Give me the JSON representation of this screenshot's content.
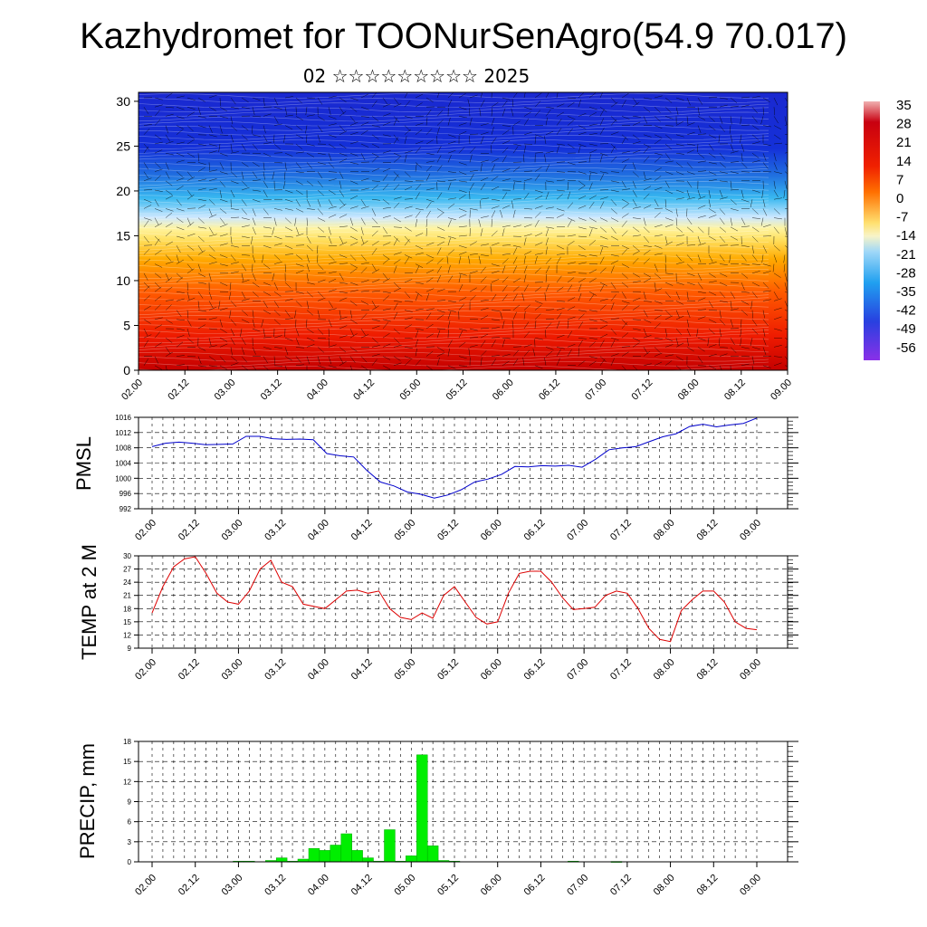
{
  "title": "Kazhydromet for TOONurSenAgro(54.9 70.017)",
  "subtitle": "02 ☆☆☆☆☆☆☆☆☆ 2025",
  "colors": {
    "pmsl_line": "#0000cc",
    "temp_line": "#dd0000",
    "precip_bar": "#00ee00",
    "precip_bar_edge": "#00aa00"
  },
  "chart_data": [
    {
      "type": "heatmap",
      "name": "cross-section",
      "x_ticks": [
        "02.00",
        "02.12",
        "03.00",
        "03.12",
        "04.00",
        "04.12",
        "05.00",
        "05.12",
        "06.00",
        "06.12",
        "07.00",
        "07.12",
        "08.00",
        "08.12",
        "09.00"
      ],
      "y_ticks": [
        "0",
        "5",
        "10",
        "15",
        "20",
        "25",
        "30"
      ],
      "ylim": [
        0,
        31
      ],
      "colorbar_labels": [
        "35",
        "28",
        "21",
        "14",
        "7",
        "0",
        "-7",
        "-14",
        "-21",
        "-28",
        "-35",
        "-42",
        "-49",
        "-56"
      ],
      "overlay": "wind barbs"
    },
    {
      "type": "line",
      "name": "pmsl",
      "ylabel": "PMSL",
      "ylim": [
        992,
        1016
      ],
      "y_ticks": [
        "1016",
        "1012",
        "1008",
        "1004",
        "1000",
        "996",
        "992"
      ],
      "x_ticks": [
        "02.00",
        "02.12",
        "03.00",
        "03.12",
        "04.00",
        "04.12",
        "05.00",
        "05.12",
        "06.00",
        "06.12",
        "07.00",
        "07.12",
        "08.00",
        "08.12",
        "09.00"
      ],
      "values": [
        1008.3,
        1009.2,
        1009.5,
        1009.2,
        1008.8,
        1008.9,
        1009.0,
        1011.0,
        1011.0,
        1010.4,
        1010.2,
        1010.3,
        1010.1,
        1006.5,
        1005.9,
        1005.6,
        1002.0,
        999.0,
        998.0,
        996.4,
        995.8,
        994.8,
        995.6,
        997.0,
        999.0,
        999.8,
        1001.0,
        1003.1,
        1003.0,
        1003.3,
        1003.2,
        1003.4,
        1002.9,
        1005.0,
        1007.5,
        1008.0,
        1008.3,
        1009.6,
        1010.9,
        1011.7,
        1013.6,
        1014.2,
        1013.5,
        1014.0,
        1014.4,
        1015.8
      ]
    },
    {
      "type": "line",
      "name": "temp",
      "ylabel": "TEMP at 2 M",
      "ylim": [
        9,
        30
      ],
      "y_ticks": [
        "30",
        "27",
        "24",
        "21",
        "18",
        "15",
        "12",
        "9"
      ],
      "x_ticks": [
        "02.00",
        "02.12",
        "03.00",
        "03.12",
        "04.00",
        "04.12",
        "05.00",
        "05.12",
        "06.00",
        "06.12",
        "07.00",
        "07.12",
        "08.00",
        "08.12",
        "09.00"
      ],
      "values": [
        17.0,
        23.0,
        27.5,
        29.3,
        29.8,
        26.0,
        21.5,
        19.5,
        19.0,
        22.0,
        27.0,
        29.0,
        24.0,
        23.0,
        19.0,
        18.5,
        18.0,
        20.0,
        22.0,
        22.2,
        21.5,
        22.0,
        18.0,
        16.0,
        15.5,
        17.0,
        15.8,
        21.0,
        23.0,
        19.5,
        16.0,
        14.5,
        15.0,
        21.5,
        26.0,
        26.5,
        26.5,
        24.0,
        20.5,
        17.8,
        18.0,
        18.3,
        21.0,
        22.0,
        21.5,
        18.0,
        13.5,
        11.0,
        10.5,
        17.5,
        20.0,
        22.0,
        22.0,
        19.5,
        15.0,
        13.5,
        13.2
      ]
    },
    {
      "type": "bar",
      "name": "precip",
      "ylabel": "PRECIP, mm",
      "ylim": [
        0,
        18
      ],
      "y_ticks": [
        "18",
        "15",
        "12",
        "9",
        "6",
        "3",
        "0"
      ],
      "x_ticks": [
        "02.00",
        "02.12",
        "03.00",
        "03.12",
        "04.00",
        "04.12",
        "05.00",
        "05.12",
        "06.00",
        "06.12",
        "07.00",
        "07.12",
        "08.00",
        "08.12",
        "09.00"
      ],
      "values": [
        0,
        0,
        0,
        0,
        0,
        0,
        0,
        0,
        0.1,
        0.1,
        0,
        0.2,
        0.6,
        0.1,
        0.4,
        2.0,
        1.7,
        2.5,
        4.2,
        1.7,
        0.6,
        0.1,
        4.8,
        0.1,
        0.9,
        16.0,
        2.4,
        0.2,
        0.1,
        0,
        0,
        0,
        0,
        0,
        0,
        0,
        0,
        0,
        0,
        0.1,
        0,
        0,
        0,
        0.05,
        0,
        0,
        0,
        0,
        0,
        0,
        0,
        0,
        0,
        0,
        0,
        0,
        0
      ]
    }
  ]
}
